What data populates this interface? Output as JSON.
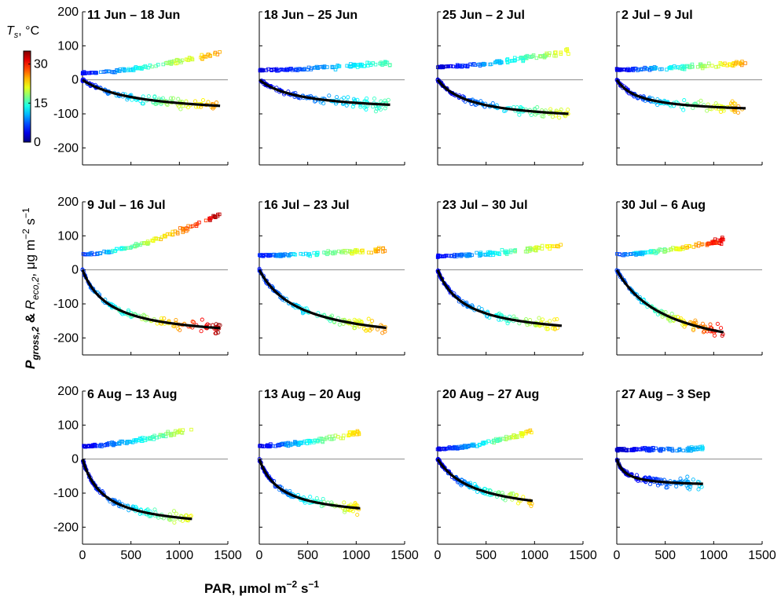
{
  "chart_data": {
    "type": "scatter",
    "xlabel": "PAR, μmol m⁻² s⁻¹",
    "ylabel": "P_gross,2 & R_eco,2, μg m⁻² s⁻¹",
    "xlim": [
      0,
      1500
    ],
    "ylim": [
      -250,
      200
    ],
    "xticks": [
      0,
      500,
      1000,
      1500
    ],
    "yticks": [
      -200,
      -100,
      0,
      100,
      200
    ],
    "colorbar": {
      "label": "Ts, °C",
      "range": [
        0,
        35
      ],
      "ticks": [
        0,
        15,
        30
      ]
    },
    "reference_line_y": 0,
    "panels": [
      {
        "title": "11 Jun – 18 Jun",
        "par_max": 1420,
        "fit": {
          "pmax": 106,
          "k": 550
        },
        "reco_range": [
          20,
          80
        ],
        "ts_range": [
          4,
          26
        ]
      },
      {
        "title": "18 Jun – 25 Jun",
        "par_max": 1350,
        "fit": {
          "pmax": 96,
          "k": 420
        },
        "reco_range": [
          28,
          50
        ],
        "ts_range": [
          3,
          16
        ]
      },
      {
        "title": "25 Jun – 2 Jul",
        "par_max": 1350,
        "fit": {
          "pmax": 125,
          "k": 340
        },
        "reco_range": [
          38,
          85
        ],
        "ts_range": [
          2,
          22
        ]
      },
      {
        "title": "2 Jul – 9 Jul",
        "par_max": 1330,
        "fit": {
          "pmax": 98,
          "k": 230
        },
        "reco_range": [
          30,
          50
        ],
        "ts_range": [
          3,
          26
        ]
      },
      {
        "title": "9 Jul – 16 Jul",
        "par_max": 1420,
        "fit": {
          "pmax": 205,
          "k": 280
        },
        "reco_range": [
          45,
          165
        ],
        "ts_range": [
          6,
          34
        ]
      },
      {
        "title": "16 Jul – 23 Jul",
        "par_max": 1310,
        "fit": {
          "pmax": 225,
          "k": 420
        },
        "reco_range": [
          42,
          60
        ],
        "ts_range": [
          5,
          26
        ]
      },
      {
        "title": "23 Jul – 30 Jul",
        "par_max": 1280,
        "fit": {
          "pmax": 200,
          "k": 280
        },
        "reco_range": [
          40,
          72
        ],
        "ts_range": [
          4,
          24
        ]
      },
      {
        "title": "30 Jul – 6 Aug",
        "par_max": 1100,
        "fit": {
          "pmax": 270,
          "k": 520
        },
        "reco_range": [
          45,
          88
        ],
        "ts_range": [
          6,
          32
        ]
      },
      {
        "title": "6 Aug – 13 Aug",
        "par_max": 1130,
        "fit": {
          "pmax": 210,
          "k": 220
        },
        "reco_range": [
          38,
          88
        ],
        "ts_range": [
          3,
          22
        ]
      },
      {
        "title": "13 Aug – 20 Aug",
        "par_max": 1040,
        "fit": {
          "pmax": 175,
          "k": 220
        },
        "reco_range": [
          38,
          80
        ],
        "ts_range": [
          3,
          24
        ]
      },
      {
        "title": "20 Aug – 27 Aug",
        "par_max": 980,
        "fit": {
          "pmax": 170,
          "k": 380
        },
        "reco_range": [
          30,
          82
        ],
        "ts_range": [
          3,
          24
        ]
      },
      {
        "title": "27 Aug – 3 Sep",
        "par_max": 890,
        "fit": {
          "pmax": 80,
          "k": 90
        },
        "reco_range": [
          28,
          30
        ],
        "ts_range": [
          2,
          12
        ]
      }
    ]
  }
}
